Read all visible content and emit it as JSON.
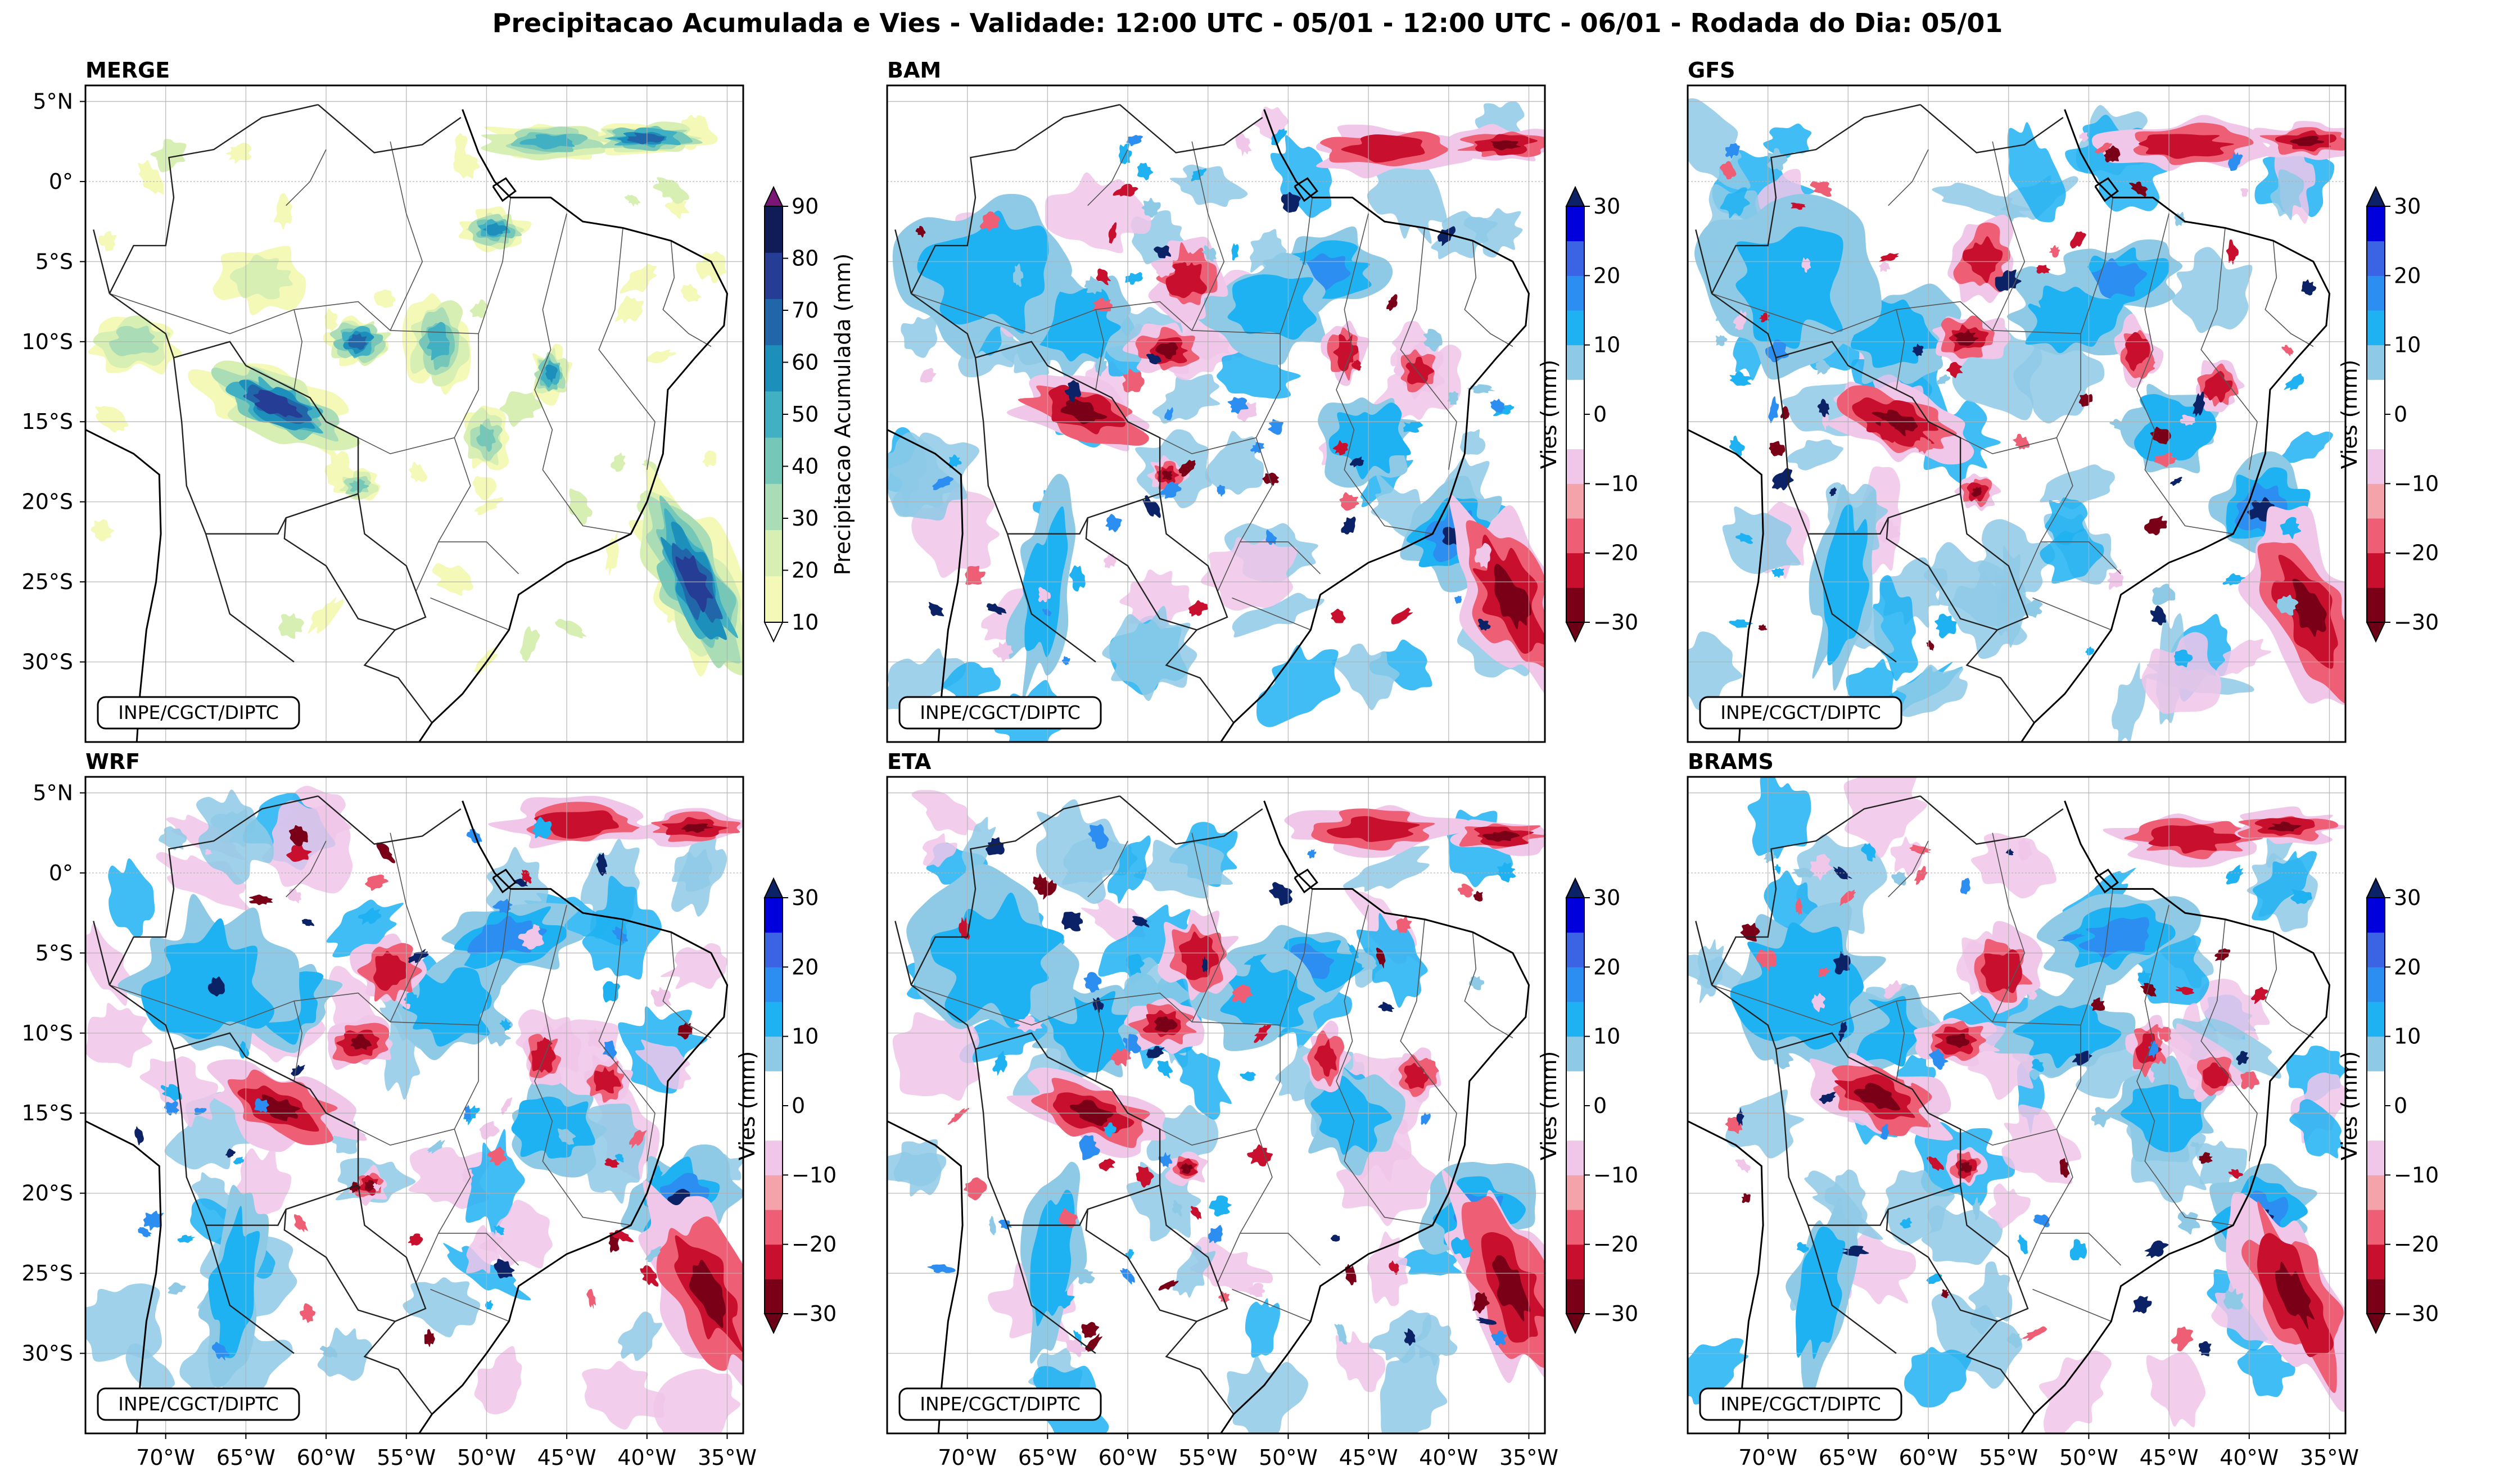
{
  "title": "Precipitacao Acumulada e Vies - Validade: 12:00 UTC - 05/01 - 12:00 UTC - 06/01 - Rodada do Dia: 05/01",
  "credit": "INPE/CGCT/DIPTC",
  "lat_ticks": [
    "5°N",
    "0°",
    "5°S",
    "10°S",
    "15°S",
    "20°S",
    "25°S",
    "30°S"
  ],
  "lon_ticks": [
    "70°W",
    "65°W",
    "60°W",
    "55°W",
    "50°W",
    "45°W",
    "40°W",
    "35°W"
  ],
  "panels": [
    {
      "id": "merge",
      "label": "MERGE",
      "kind": "precip"
    },
    {
      "id": "bam",
      "label": "BAM",
      "kind": "bias"
    },
    {
      "id": "gfs",
      "label": "GFS",
      "kind": "bias"
    },
    {
      "id": "wrf",
      "label": "WRF",
      "kind": "bias"
    },
    {
      "id": "eta",
      "label": "ETA",
      "kind": "bias"
    },
    {
      "id": "brams",
      "label": "BRAMS",
      "kind": "bias"
    }
  ],
  "colorbars": {
    "precip": {
      "label": "Precipitacao Acumulada (mm)",
      "ticks": [
        "90",
        "80",
        "70",
        "60",
        "50",
        "40",
        "30",
        "20",
        "10"
      ],
      "colors": [
        "#f4f9b8",
        "#d8efb3",
        "#aadcb6",
        "#75c7b8",
        "#40b0c2",
        "#1d8fbb",
        "#2266aa",
        "#253d94",
        "#101c58"
      ],
      "over": "#7a1676",
      "under": "#ffffff"
    },
    "bias": {
      "label": "Vies (mm)",
      "ticks": [
        "30",
        "20",
        "10",
        "0",
        "−10",
        "−20",
        "−30"
      ],
      "colors": [
        "#7a0018",
        "#c8102e",
        "#ee5e74",
        "#f4a3ab",
        "#f0c6e9",
        "#ffffff",
        "#ffffff",
        "#8ecae6",
        "#1fb2f2",
        "#2c8ef0",
        "#3a64e4",
        "#0000dd"
      ],
      "over": "#0b2366",
      "under": "#6b0016"
    }
  },
  "map_colors": {
    "bias_pos_light": "#8ecae6",
    "bias_pos_mid": "#1fb2f2",
    "bias_pos_strong": "#2c8ef0",
    "bias_pos_extreme": "#0b2366",
    "bias_neg_light": "#f0c6e9",
    "bias_neg_mid": "#ee5e74",
    "bias_neg_strong": "#c8102e",
    "bias_neg_extreme": "#7a0018"
  }
}
